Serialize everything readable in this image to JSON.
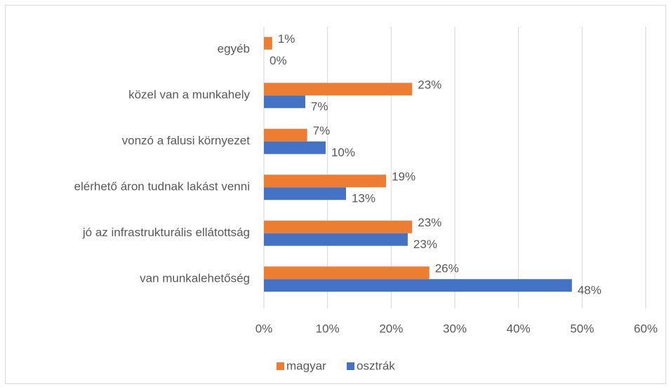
{
  "chart_data": {
    "type": "hbar",
    "categories": [
      "egyéb",
      "közel van a munkahely",
      "vonzó a falusi környezet",
      "elérhető áron tudnak lakást venni",
      "jó az infrastrukturális ellátottság",
      "van munkalehetőség"
    ],
    "series": [
      {
        "name": "magyar",
        "color": "#ed7d31",
        "values": [
          1.3,
          23.3,
          6.8,
          19.2,
          23.3,
          26.0
        ],
        "value_labels": [
          "1%",
          "23%",
          "7%",
          "19%",
          "23%",
          "26%"
        ]
      },
      {
        "name": "osztrák",
        "color": "#4472c4",
        "values": [
          0,
          6.5,
          9.7,
          12.9,
          22.6,
          48.4
        ],
        "value_labels": [
          "0%",
          "7%",
          "10%",
          "13%",
          "23%",
          "48%"
        ]
      }
    ],
    "xlim": [
      0,
      60
    ],
    "xticks": [
      {
        "value": 0,
        "label": "0%"
      },
      {
        "value": 10,
        "label": "10%"
      },
      {
        "value": 20,
        "label": "20%"
      },
      {
        "value": 30,
        "label": "30%"
      },
      {
        "value": 40,
        "label": "40%"
      },
      {
        "value": 50,
        "label": "50%"
      },
      {
        "value": 60,
        "label": "60%"
      }
    ],
    "grid": true,
    "legend": "bottom"
  }
}
